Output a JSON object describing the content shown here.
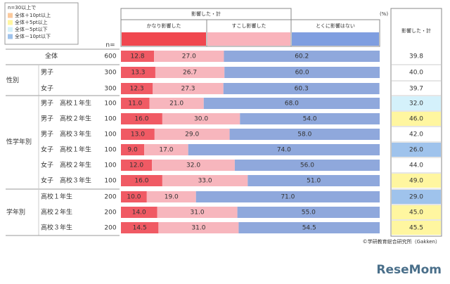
{
  "legend": {
    "title": "n=30以上で",
    "items": [
      {
        "label": "全体＋10pt以上",
        "color": "#fbc99c"
      },
      {
        "label": "全体＋5pt以上",
        "color": "#fff6a0"
      },
      {
        "label": "全体－5pt以下",
        "color": "#d4f1fb"
      },
      {
        "label": "全体－10pt以下",
        "color": "#9fc3ec"
      }
    ]
  },
  "chart_data": {
    "type": "stacked_bar",
    "header": "影響した・計",
    "unit": "(%)",
    "n_label": "n=",
    "categories": [
      "全体",
      "男子",
      "女子",
      "男子　高校１年生",
      "男子　高校２年生",
      "男子　高校３年生",
      "女子　高校１年生",
      "女子　高校２年生",
      "女子　高校３年生",
      "高校１年生",
      "高校２年生",
      "高校３年生"
    ],
    "row_groups": [
      {
        "label": "性別",
        "first": 1,
        "last": 2
      },
      {
        "label": "性学年別",
        "first": 3,
        "last": 8
      },
      {
        "label": "学年別",
        "first": 9,
        "last": 11
      }
    ],
    "n": [
      600,
      300,
      300,
      100,
      100,
      100,
      100,
      100,
      100,
      200,
      200,
      200
    ],
    "xlim": [
      0,
      100
    ],
    "series": [
      {
        "name": "かなり影響した",
        "color": "#f05a64",
        "header_color": "#f0474f",
        "values": [
          12.8,
          13.3,
          12.3,
          11,
          16,
          13,
          9,
          12,
          16,
          10,
          14,
          14.5
        ],
        "value_labels": [
          "12.8",
          "13.3",
          "12.3",
          "11.0",
          "16.0",
          "13.0",
          "9.0",
          "12.0",
          "16.0",
          "10.0",
          "14.0",
          "14.5"
        ]
      },
      {
        "name": "すこし影響した",
        "color": "#f7b6bd",
        "header_color": "#f9b3bb",
        "values": [
          27,
          26.7,
          27.3,
          21,
          30,
          29,
          17,
          32,
          33,
          19,
          31,
          31
        ],
        "value_labels": [
          "27.0",
          "26.7",
          "27.3",
          "21.0",
          "30.0",
          "29.0",
          "17.0",
          "32.0",
          "33.0",
          "19.0",
          "31.0",
          "31.0"
        ]
      },
      {
        "name": "とくに影響はない",
        "color": "#8fa8dc",
        "header_color": "#7f9ee0",
        "values": [
          60.2,
          60,
          60.3,
          68,
          54,
          58,
          74,
          56,
          51,
          71,
          55,
          54.5
        ],
        "value_labels": [
          "60.2",
          "60.0",
          "60.3",
          "68.0",
          "54.0",
          "58.0",
          "74.0",
          "56.0",
          "51.0",
          "71.0",
          "55.0",
          "54.5"
        ]
      }
    ],
    "total": {
      "label": "影響した・計",
      "values": [
        39.8,
        40,
        39.7,
        32,
        46,
        42,
        26,
        44,
        49,
        29,
        45,
        45.5
      ],
      "value_labels": [
        "39.8",
        "40.0",
        "39.7",
        "32.0",
        "46.0",
        "42.0",
        "26.0",
        "44.0",
        "49.0",
        "29.0",
        "45.0",
        "45.5"
      ],
      "colors": [
        null,
        null,
        null,
        "#d4f1fb",
        "#fff6a0",
        null,
        "#9fc3ec",
        null,
        "#fff6a0",
        "#9fc3ec",
        "#fff6a0",
        "#fff6a0"
      ]
    },
    "source": "©学研教育総合研究所（Gakken）",
    "logo": "ReseMom"
  }
}
